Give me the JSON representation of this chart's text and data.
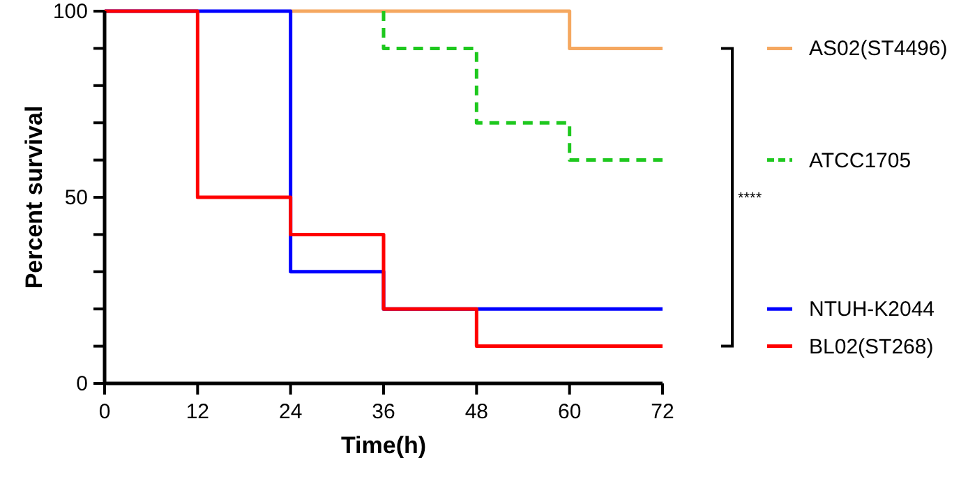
{
  "chart_data": {
    "type": "step",
    "xlabel": "Time(h)",
    "ylabel": "Percent survival",
    "xlim": [
      0,
      72
    ],
    "xticks": [
      0,
      12,
      24,
      36,
      48,
      60,
      72
    ],
    "ylim": [
      0,
      100
    ],
    "yticks": [
      0,
      {
        "value": 10,
        "label": null
      },
      {
        "value": 20,
        "label": null
      },
      {
        "value": 30,
        "label": null
      },
      {
        "value": 40,
        "label": null
      },
      50,
      {
        "value": 60,
        "label": null
      },
      {
        "value": 70,
        "label": null
      },
      {
        "value": 80,
        "label": null
      },
      {
        "value": 90,
        "label": null
      },
      100
    ],
    "legend": "right",
    "grid": false,
    "annotations": [
      "****"
    ],
    "series": [
      {
        "name": "AS02(ST4496)",
        "color": "#f5a860",
        "x": [
          24,
          60,
          72
        ],
        "values": [
          100,
          90,
          90
        ]
      },
      {
        "name": "ATCC1705",
        "color": "#1ec81e",
        "line_style": "dashed",
        "x": [
          36,
          36,
          48,
          60,
          72
        ],
        "values": [
          100,
          90,
          70,
          60,
          60
        ]
      },
      {
        "name": "NTUH-K2044",
        "color": "#0000ff",
        "x": [
          0,
          24,
          36,
          72
        ],
        "values": [
          100,
          30,
          20,
          20
        ]
      },
      {
        "name": "BL02(ST268)",
        "color": "#ff0000",
        "x": [
          0,
          12,
          24,
          36,
          48,
          72
        ],
        "values": [
          100,
          50,
          40,
          20,
          10,
          10
        ]
      }
    ]
  }
}
